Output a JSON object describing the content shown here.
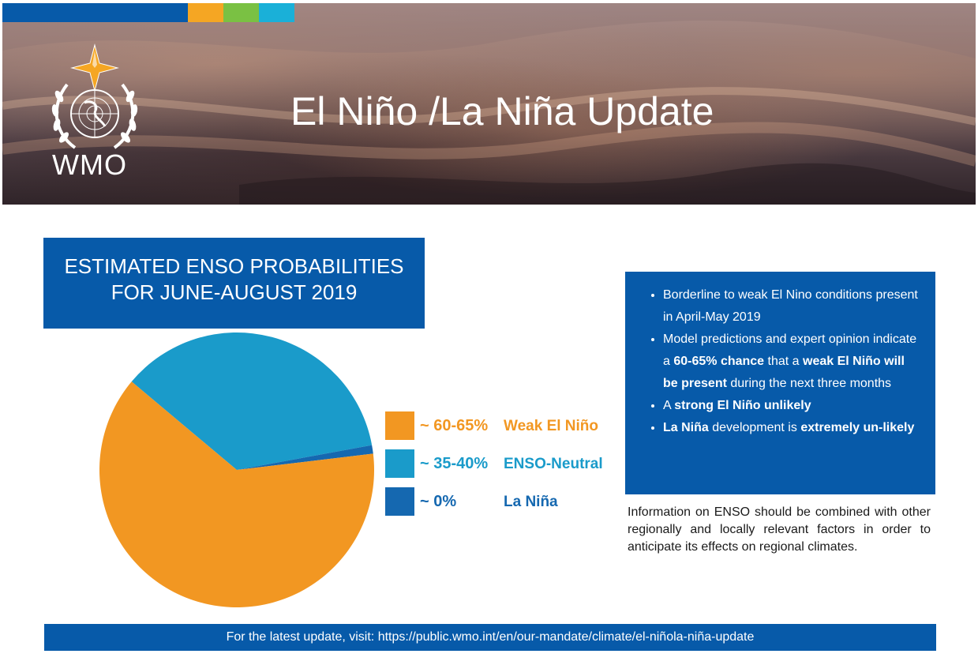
{
  "header": {
    "logo_text": "WMO",
    "title": "El Niño /La Niña Update",
    "accent_colors": [
      "#075aa9",
      "#f5a623",
      "#7ac143",
      "#1ab0d8"
    ]
  },
  "chart_data": {
    "type": "pie",
    "title_lines": [
      "ESTIMATED ENSO PROBABILITIES",
      "FOR JUNE-AUGUST 2019"
    ],
    "slices": [
      {
        "label": "Weak El Niño",
        "range_text": "~ 60-65%",
        "value": 63,
        "color": "#f29722"
      },
      {
        "label": "ENSO-Neutral",
        "range_text": "~ 35-40%",
        "value": 36,
        "color": "#1a9bca"
      },
      {
        "label": "La Niña",
        "range_text": "~ 0%",
        "value": 1,
        "color": "#1568b0"
      }
    ],
    "legend_position": "right"
  },
  "info": {
    "bullets": [
      [
        {
          "text": "Borderline to weak El Nino conditions present in April-May 2019",
          "bold": false
        }
      ],
      [
        {
          "text": "Model predictions and expert opinion indicate a ",
          "bold": false
        },
        {
          "text": "60-65% chance",
          "bold": true
        },
        {
          "text": " that a ",
          "bold": false
        },
        {
          "text": "weak El Niño will be present",
          "bold": true
        },
        {
          "text": " during the next three months",
          "bold": false
        }
      ],
      [
        {
          "text": "A ",
          "bold": false
        },
        {
          "text": "strong El Niño unlikely",
          "bold": true
        }
      ],
      [
        {
          "text": "La Niña",
          "bold": true
        },
        {
          "text": " development is ",
          "bold": false
        },
        {
          "text": "extremely un-likely",
          "bold": true
        }
      ]
    ],
    "note": "Information on ENSO should be combined with other regionally and locally relevant factors in order to anticipate its effects on regional climates."
  },
  "footer": {
    "text": "For the latest update, visit: https://public.wmo.int/en/our-mandate/climate/el-niñola-niña-update"
  }
}
